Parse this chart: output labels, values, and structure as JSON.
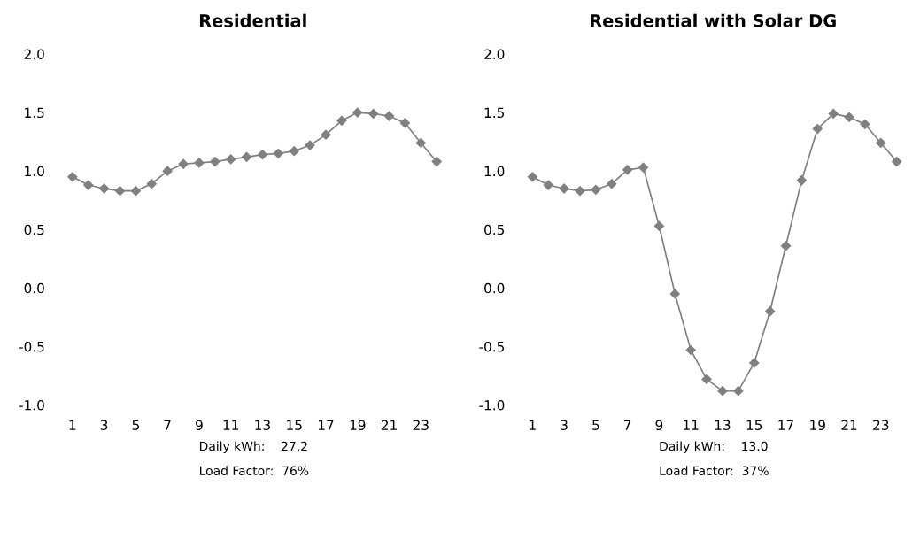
{
  "chart_data": [
    {
      "type": "line",
      "title": "Residential",
      "marker": "diamond",
      "grid": false,
      "categories": [
        "1",
        null,
        "3",
        null,
        "5",
        null,
        "7",
        null,
        "9",
        null,
        "11",
        null,
        "13",
        null,
        "15",
        null,
        "17",
        null,
        "19",
        null,
        "21",
        null,
        "23",
        null
      ],
      "series": [
        {
          "color": "#808080",
          "values": [
            0.95,
            0.88,
            0.85,
            0.83,
            0.83,
            0.89,
            1.0,
            1.06,
            1.07,
            1.08,
            1.1,
            1.12,
            1.14,
            1.15,
            1.17,
            1.22,
            1.31,
            1.43,
            1.5,
            1.49,
            1.47,
            1.41,
            1.24,
            1.08
          ]
        }
      ],
      "ylim": [
        -1.0,
        2.0
      ],
      "yticks": [
        {
          "value": -1.0,
          "label": "-1.0"
        },
        {
          "value": -0.5,
          "label": "-0.5"
        },
        {
          "value": 0.0,
          "label": "0.0"
        },
        {
          "value": 0.5,
          "label": "0.5"
        },
        {
          "value": 1.0,
          "label": "1.0"
        },
        {
          "value": 1.5,
          "label": "1.5"
        },
        {
          "value": 2.0,
          "label": "2.0"
        }
      ],
      "annotations": [
        "Daily kWh:    27.2",
        "Load Factor:  76%"
      ]
    },
    {
      "type": "line",
      "title": "Residential with Solar DG",
      "marker": "diamond",
      "grid": false,
      "categories": [
        "1",
        null,
        "3",
        null,
        "5",
        null,
        "7",
        null,
        "9",
        null,
        "11",
        null,
        "13",
        null,
        "15",
        null,
        "17",
        null,
        "19",
        null,
        "21",
        null,
        "23",
        null
      ],
      "series": [
        {
          "color": "#808080",
          "values": [
            0.95,
            0.88,
            0.85,
            0.83,
            0.84,
            0.89,
            1.01,
            1.03,
            0.53,
            -0.05,
            -0.53,
            -0.78,
            -0.88,
            -0.88,
            -0.64,
            -0.2,
            0.36,
            0.92,
            1.36,
            1.49,
            1.46,
            1.4,
            1.24,
            1.08
          ]
        }
      ],
      "ylim": [
        -1.0,
        2.0
      ],
      "yticks": [
        {
          "value": -1.0,
          "label": "-1.0"
        },
        {
          "value": -0.5,
          "label": "-0.5"
        },
        {
          "value": 0.0,
          "label": "0.0"
        },
        {
          "value": 0.5,
          "label": "0.5"
        },
        {
          "value": 1.0,
          "label": "1.0"
        },
        {
          "value": 1.5,
          "label": "1.5"
        },
        {
          "value": 2.0,
          "label": "2.0"
        }
      ],
      "annotations": [
        "Daily kWh:    13.0",
        "Load Factor:  37%"
      ]
    }
  ]
}
